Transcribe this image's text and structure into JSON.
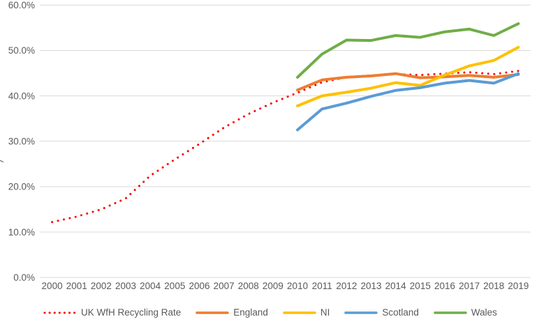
{
  "colors": {
    "background": "#FFFFFF",
    "gridline": "#D9D9D9",
    "axis_text": "#595959",
    "uk": "#FF0000",
    "england": "#ED7D31",
    "ni": "#FFC000",
    "scotland": "#5B9BD5",
    "wales": "#70AD47"
  },
  "y_axis": {
    "tick_labels": [
      "0.0%",
      "10.0%",
      "20.0%",
      "30.0%",
      "40.0%",
      "50.0%",
      "60.0%"
    ],
    "clipped_title_fragment": ")"
  },
  "x_axis": {
    "tick_labels": [
      "2000",
      "2001",
      "2002",
      "2003",
      "2004",
      "2005",
      "2006",
      "2007",
      "2008",
      "2009",
      "2010",
      "2011",
      "2012",
      "2013",
      "2014",
      "2015",
      "2016",
      "2017",
      "2018",
      "2019"
    ]
  },
  "chart_data": {
    "type": "line",
    "title": "",
    "xlabel": "",
    "ylabel": "",
    "x": [
      2000,
      2001,
      2002,
      2003,
      2004,
      2005,
      2006,
      2007,
      2008,
      2009,
      2010,
      2011,
      2012,
      2013,
      2014,
      2015,
      2016,
      2017,
      2018,
      2019
    ],
    "ylim": [
      0,
      60
    ],
    "y_tick_step": 10,
    "y_tick_format": "percent_one_decimal",
    "grid": "horizontal",
    "legend_position": "bottom",
    "series": [
      {
        "name": "UK WfH Recycling Rate",
        "color": "#FF0000",
        "line_style": "dotted",
        "start_year": 2000,
        "values": [
          12.2,
          13.4,
          15.0,
          17.4,
          22.4,
          26.0,
          29.4,
          33.0,
          36.0,
          38.5,
          40.7,
          43.0,
          44.1,
          44.5,
          44.8,
          44.6,
          44.9,
          45.2,
          44.8,
          45.5
        ]
      },
      {
        "name": "England",
        "color": "#ED7D31",
        "line_style": "solid",
        "start_year": 2010,
        "values": [
          41.3,
          43.5,
          44.1,
          44.4,
          44.9,
          44.0,
          44.2,
          44.5,
          44.1,
          44.7
        ]
      },
      {
        "name": "NI",
        "color": "#FFC000",
        "line_style": "solid",
        "start_year": 2010,
        "values": [
          37.8,
          40.0,
          40.8,
          41.7,
          42.9,
          42.3,
          44.6,
          46.6,
          47.8,
          50.7
        ]
      },
      {
        "name": "Scotland",
        "color": "#5B9BD5",
        "line_style": "solid",
        "start_year": 2010,
        "values": [
          32.5,
          37.1,
          38.4,
          39.9,
          41.2,
          41.8,
          42.8,
          43.4,
          42.8,
          44.9
        ]
      },
      {
        "name": "Wales",
        "color": "#70AD47",
        "line_style": "solid",
        "start_year": 2010,
        "values": [
          44.1,
          49.2,
          52.3,
          52.2,
          53.3,
          52.9,
          54.1,
          54.7,
          53.3,
          55.9
        ]
      }
    ]
  }
}
